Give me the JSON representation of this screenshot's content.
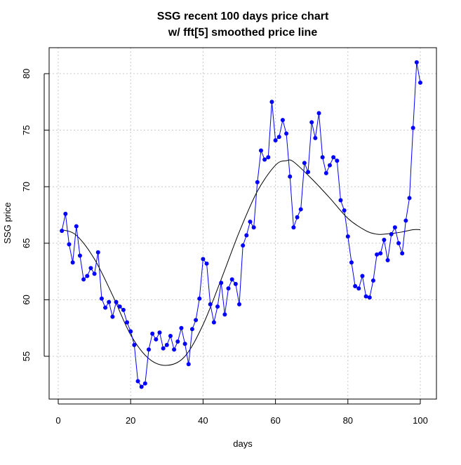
{
  "chart_data": {
    "type": "line",
    "title": "SSG recent 100 days price chart",
    "subtitle": "w/ fft[5] smoothed price line",
    "xlabel": "days",
    "ylabel": "SSG price",
    "xlim": [
      0,
      100
    ],
    "ylim": [
      55,
      80
    ],
    "xticks": [
      0,
      20,
      40,
      60,
      80,
      100
    ],
    "yticks": [
      55,
      60,
      65,
      70,
      75,
      80
    ],
    "grid": true,
    "colors": {
      "price": "#0000ff",
      "smooth": "#000000",
      "grid": "#c8c8c8"
    },
    "series": [
      {
        "name": "price",
        "x_start": 1,
        "values": [
          66.1,
          67.6,
          64.9,
          63.3,
          66.5,
          63.9,
          61.8,
          62.1,
          62.8,
          62.3,
          64.2,
          60.1,
          59.3,
          59.8,
          58.5,
          59.8,
          59.4,
          59.1,
          58.0,
          57.2,
          56.0,
          52.8,
          52.3,
          52.6,
          55.6,
          57.0,
          56.5,
          57.1,
          55.7,
          56.0,
          56.8,
          55.6,
          56.3,
          57.5,
          56.1,
          54.3,
          57.4,
          58.2,
          60.1,
          63.6,
          63.2,
          59.6,
          58.0,
          59.4,
          61.5,
          58.7,
          61.0,
          61.8,
          61.4,
          59.6,
          64.8,
          65.7,
          66.9,
          66.4,
          70.4,
          73.2,
          72.4,
          72.6,
          77.5,
          74.1,
          74.4,
          75.9,
          74.7,
          70.9,
          66.4,
          67.3,
          68.0,
          72.1,
          71.3,
          75.7,
          74.3,
          76.5,
          72.6,
          71.2,
          71.9,
          72.6,
          72.3,
          68.8,
          67.9,
          65.6,
          63.3,
          61.2,
          61.0,
          62.1,
          60.3,
          60.2,
          61.7,
          64.0,
          64.1,
          65.3,
          63.5,
          65.8,
          66.4,
          65.0,
          64.1,
          67.0,
          69.0,
          75.2,
          81.0,
          79.2
        ]
      },
      {
        "name": "fft[5] smoothed",
        "x": [
          1,
          5,
          10,
          15,
          20,
          25,
          30,
          35,
          40,
          45,
          50,
          55,
          60,
          63,
          65,
          70,
          75,
          80,
          85,
          88,
          90,
          93,
          95,
          98,
          100
        ],
        "values": [
          66.2,
          65.7,
          63.6,
          60.4,
          56.9,
          54.8,
          54.2,
          55.0,
          57.8,
          61.8,
          66.0,
          69.6,
          71.9,
          72.3,
          72.2,
          70.7,
          69.0,
          67.2,
          66.1,
          65.8,
          65.8,
          65.9,
          66.0,
          66.2,
          66.2
        ]
      }
    ]
  }
}
